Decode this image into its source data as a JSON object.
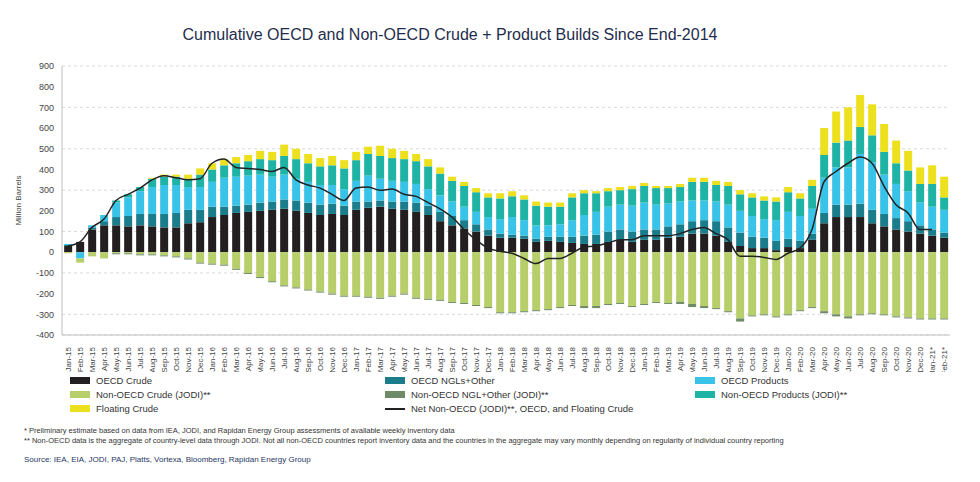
{
  "chart_data": {
    "type": "bar",
    "title": "Cumulative OECD and Non-OECD Crude + Product Builds Since End-2014",
    "y_label": "Million Barrels",
    "stacked": true,
    "grid": true,
    "legend": "bottom",
    "categories": [
      "Jan-15",
      "Feb-15",
      "Mar-15",
      "Apr-15",
      "May-15",
      "Jun-15",
      "Jul-15",
      "Aug-15",
      "Sep-15",
      "Oct-15",
      "Nov-15",
      "Dec-15",
      "Jan-16",
      "Feb-16",
      "Mar-16",
      "Apr-16",
      "May-16",
      "Jun-16",
      "Jul-16",
      "Aug-16",
      "Sep-16",
      "Oct-16",
      "Nov-16",
      "Dec-16",
      "Jan-17",
      "Feb-17",
      "Mar-17",
      "Apr-17",
      "May-17",
      "Jun-17",
      "Jul-17",
      "Aug-17",
      "Sep-17",
      "Oct-17",
      "Nov-17",
      "Dec-17",
      "Jan-18",
      "Feb-18",
      "Mar-18",
      "Apr-18",
      "May-18",
      "Jun-18",
      "Jul-18",
      "Aug-18",
      "Sep-18",
      "Oct-18",
      "Nov-18",
      "Dec-18",
      "Jan-19",
      "Feb-19",
      "Mar-19",
      "Apr-19",
      "May-19",
      "Jun-19",
      "Jul-19",
      "Aug-19",
      "Sep-19",
      "Oct-19",
      "Nov-19",
      "Dec-19",
      "Jan-20",
      "Feb-20",
      "Mar-20",
      "Apr-20",
      "May-20",
      "Jun-20",
      "Jul-20",
      "Aug-20",
      "Sep-20",
      "Oct-20",
      "Nov-20",
      "Dec-20",
      "Jan-21*",
      "Feb-21*"
    ],
    "ylim": [
      -400,
      900
    ],
    "yticks": [
      -400,
      -300,
      -200,
      -100,
      0,
      100,
      200,
      300,
      400,
      500,
      600,
      700,
      800,
      900
    ],
    "series": [
      {
        "name": "OECD Crude",
        "type": "bar",
        "color": "#231f20",
        "values": [
          30,
          50,
          110,
          130,
          130,
          125,
          130,
          125,
          120,
          120,
          140,
          145,
          170,
          180,
          190,
          195,
          200,
          205,
          210,
          200,
          190,
          180,
          185,
          180,
          205,
          215,
          220,
          210,
          205,
          195,
          180,
          150,
          130,
          115,
          100,
          80,
          70,
          70,
          65,
          50,
          55,
          50,
          45,
          40,
          40,
          50,
          60,
          50,
          60,
          60,
          70,
          75,
          90,
          90,
          80,
          50,
          30,
          20,
          20,
          10,
          25,
          20,
          60,
          140,
          170,
          170,
          170,
          140,
          125,
          110,
          100,
          90,
          80,
          70
        ]
      },
      {
        "name": "OECD NGLs+Other",
        "type": "bar",
        "color": "#1b7d8c",
        "values": [
          5,
          0,
          10,
          20,
          40,
          50,
          55,
          60,
          65,
          70,
          65,
          60,
          50,
          40,
          35,
          35,
          40,
          40,
          45,
          50,
          50,
          50,
          50,
          45,
          40,
          30,
          30,
          35,
          40,
          45,
          45,
          45,
          45,
          40,
          35,
          30,
          20,
          15,
          15,
          15,
          20,
          25,
          30,
          40,
          45,
          50,
          50,
          50,
          50,
          50,
          55,
          60,
          60,
          65,
          70,
          70,
          65,
          55,
          50,
          45,
          40,
          35,
          30,
          50,
          60,
          60,
          65,
          65,
          60,
          55,
          50,
          40,
          30,
          25
        ]
      },
      {
        "name": "OECD Products",
        "type": "bar",
        "color": "#39c3e8",
        "values": [
          5,
          -30,
          10,
          30,
          70,
          90,
          110,
          130,
          140,
          135,
          110,
          110,
          120,
          140,
          140,
          140,
          135,
          120,
          120,
          105,
          100,
          95,
          90,
          80,
          100,
          125,
          105,
          100,
          95,
          90,
          80,
          80,
          70,
          65,
          60,
          60,
          70,
          85,
          75,
          65,
          55,
          60,
          80,
          100,
          110,
          120,
          120,
          125,
          130,
          120,
          110,
          110,
          100,
          95,
          95,
          110,
          105,
          100,
          90,
          100,
          130,
          120,
          120,
          170,
          180,
          180,
          240,
          230,
          190,
          165,
          145,
          110,
          110,
          110
        ]
      },
      {
        "name": "Non-OECD Crude (JODI)**",
        "type": "bar",
        "color": "#b7cf6b",
        "values": [
          -5,
          -20,
          -20,
          -30,
          -5,
          -5,
          -10,
          -10,
          -15,
          -20,
          -30,
          -50,
          -55,
          -60,
          -80,
          -100,
          -120,
          -140,
          -160,
          -170,
          -180,
          -190,
          -200,
          -210,
          -210,
          -215,
          -220,
          -210,
          -200,
          -220,
          -225,
          -230,
          -240,
          -245,
          -255,
          -265,
          -290,
          -290,
          -285,
          -280,
          -275,
          -265,
          -255,
          -260,
          -260,
          -250,
          -245,
          -260,
          -250,
          -240,
          -245,
          -240,
          -250,
          -260,
          -270,
          -285,
          -320,
          -305,
          -300,
          -310,
          -300,
          -280,
          -265,
          -285,
          -300,
          -310,
          -300,
          -295,
          -300,
          -310,
          -315,
          -320,
          -320,
          -320
        ]
      },
      {
        "name": "Non-OECD NGL+Other (JODI)**",
        "type": "bar",
        "color": "#6e8a66",
        "values": [
          0,
          0,
          0,
          0,
          -5,
          -5,
          -5,
          -5,
          -5,
          -5,
          -5,
          -5,
          -5,
          -5,
          -5,
          -5,
          -5,
          -5,
          -5,
          -5,
          -5,
          -5,
          -5,
          -5,
          -5,
          -5,
          -5,
          -5,
          -5,
          -5,
          -5,
          -5,
          -5,
          -5,
          -5,
          -5,
          -5,
          -5,
          -5,
          -5,
          -5,
          -5,
          -5,
          -10,
          -10,
          -5,
          -5,
          -5,
          -5,
          -5,
          -5,
          -10,
          -15,
          -10,
          -5,
          -5,
          -15,
          -5,
          -5,
          -5,
          -5,
          -5,
          -5,
          -10,
          -10,
          -10,
          -5,
          -5,
          -5,
          -5,
          -5,
          -5,
          -5,
          -5
        ]
      },
      {
        "name": "Non-OECD Products (JODI)**",
        "type": "bar",
        "color": "#1fb3a5",
        "values": [
          0,
          0,
          0,
          0,
          10,
          15,
          20,
          40,
          40,
          40,
          40,
          60,
          60,
          60,
          65,
          70,
          75,
          80,
          90,
          95,
          90,
          90,
          95,
          100,
          100,
          105,
          110,
          110,
          110,
          110,
          110,
          105,
          100,
          100,
          95,
          95,
          100,
          100,
          100,
          95,
          90,
          85,
          110,
          105,
          90,
          75,
          70,
          80,
          80,
          80,
          75,
          70,
          90,
          90,
          80,
          90,
          80,
          90,
          90,
          90,
          95,
          85,
          110,
          110,
          120,
          130,
          130,
          130,
          110,
          100,
          100,
          90,
          110,
          60
        ]
      },
      {
        "name": "Floating Crude",
        "type": "bar",
        "color": "#ece01f",
        "values": [
          0,
          0,
          0,
          0,
          0,
          0,
          0,
          5,
          10,
          10,
          20,
          30,
          30,
          30,
          30,
          30,
          40,
          40,
          55,
          50,
          45,
          40,
          45,
          40,
          40,
          35,
          50,
          45,
          40,
          35,
          35,
          30,
          20,
          20,
          20,
          20,
          25,
          25,
          20,
          20,
          20,
          20,
          20,
          15,
          10,
          15,
          15,
          15,
          15,
          10,
          10,
          15,
          20,
          20,
          20,
          20,
          20,
          20,
          20,
          20,
          25,
          25,
          30,
          130,
          150,
          160,
          155,
          150,
          135,
          110,
          95,
          80,
          90,
          100
        ]
      },
      {
        "name": "Net Non-OECD (JODI)**, OECD, and Floating Crude",
        "type": "line",
        "color": "#222222",
        "values": [
          30,
          50,
          120,
          160,
          250,
          280,
          310,
          350,
          370,
          360,
          350,
          355,
          430,
          450,
          410,
          405,
          400,
          390,
          410,
          350,
          325,
          310,
          280,
          250,
          310,
          315,
          300,
          305,
          280,
          270,
          240,
          210,
          170,
          110,
          60,
          20,
          5,
          -5,
          -30,
          -55,
          -30,
          -30,
          -5,
          25,
          30,
          45,
          60,
          60,
          80,
          80,
          80,
          90,
          110,
          120,
          90,
          60,
          -20,
          -20,
          -25,
          -35,
          -5,
          20,
          110,
          340,
          390,
          430,
          460,
          430,
          320,
          230,
          190,
          110,
          110,
          null
        ]
      }
    ],
    "notes": [
      "* Preliminary estimate based on data from IEA, JODI, and Rapidan Energy Group assessments of available weekly inventory data",
      "** Non-OECD data is the aggregate of country-level data through JODI. Not all non-OECD countries report inventory data and the countries in the aggregate may vary monthly depending on regularity of individual country reporting"
    ],
    "source": "Source: IEA, EIA, JODI, PAJ, Platts, Vortexa, Bloomberg, Rapidan Energy Group"
  }
}
